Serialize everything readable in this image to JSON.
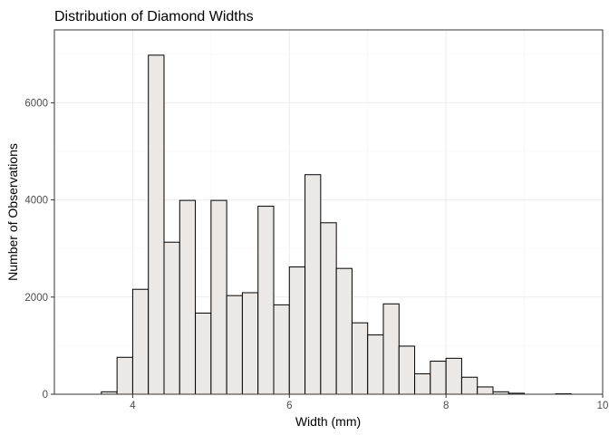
{
  "chart_data": {
    "type": "bar",
    "title": "Distribution of Diamond Widths",
    "xlabel": "Width (mm)",
    "ylabel": "Number of Observations",
    "xlim": [
      3,
      10
    ],
    "ylim": [
      0,
      7500
    ],
    "x_ticks": [
      4,
      6,
      8,
      10
    ],
    "y_ticks": [
      0,
      2000,
      4000,
      6000
    ],
    "grid": true,
    "bin_width": 0.2,
    "bins": [
      {
        "x": 3.7,
        "count": 50
      },
      {
        "x": 3.9,
        "count": 760
      },
      {
        "x": 4.1,
        "count": 2160
      },
      {
        "x": 4.3,
        "count": 6980
      },
      {
        "x": 4.5,
        "count": 3130
      },
      {
        "x": 4.7,
        "count": 3990
      },
      {
        "x": 4.9,
        "count": 1670
      },
      {
        "x": 5.1,
        "count": 3990
      },
      {
        "x": 5.3,
        "count": 2030
      },
      {
        "x": 5.5,
        "count": 2090
      },
      {
        "x": 5.7,
        "count": 3870
      },
      {
        "x": 5.9,
        "count": 1840
      },
      {
        "x": 6.1,
        "count": 2620
      },
      {
        "x": 6.3,
        "count": 4520
      },
      {
        "x": 6.5,
        "count": 3530
      },
      {
        "x": 6.7,
        "count": 2590
      },
      {
        "x": 6.9,
        "count": 1470
      },
      {
        "x": 7.1,
        "count": 1220
      },
      {
        "x": 7.3,
        "count": 1860
      },
      {
        "x": 7.5,
        "count": 990
      },
      {
        "x": 7.7,
        "count": 420
      },
      {
        "x": 7.9,
        "count": 680
      },
      {
        "x": 8.1,
        "count": 740
      },
      {
        "x": 8.3,
        "count": 350
      },
      {
        "x": 8.5,
        "count": 150
      },
      {
        "x": 8.7,
        "count": 50
      },
      {
        "x": 8.9,
        "count": 20
      },
      {
        "x": 9.1,
        "count": 0
      },
      {
        "x": 9.3,
        "count": 0
      },
      {
        "x": 9.5,
        "count": 10
      }
    ],
    "colors": {
      "bar_fill": "#ece8e6",
      "bar_stroke": "#000000",
      "grid": "#ebebeb",
      "text": "#000000",
      "tick_text": "#4d4d4d"
    }
  }
}
